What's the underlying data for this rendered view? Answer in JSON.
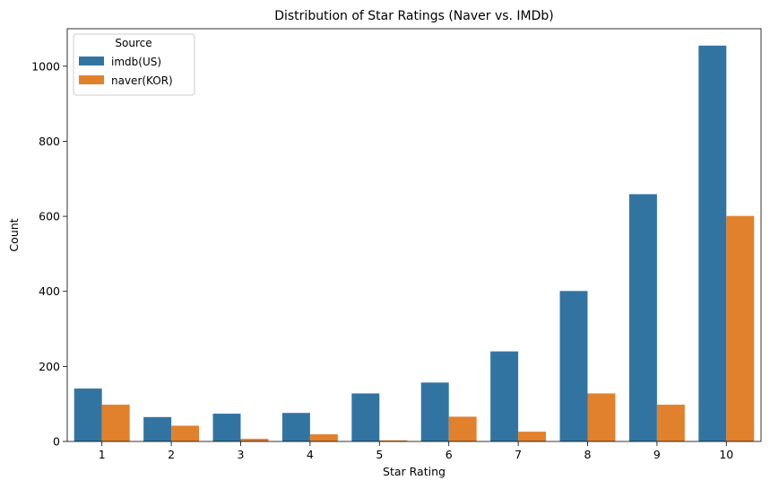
{
  "chart_data": {
    "type": "bar",
    "title": "Distribution of Star Ratings (Naver vs. IMDb)",
    "xlabel": "Star Rating",
    "ylabel": "Count",
    "categories": [
      "1",
      "2",
      "3",
      "4",
      "5",
      "6",
      "7",
      "8",
      "9",
      "10"
    ],
    "series": [
      {
        "name": "imdb(US)",
        "color": "#3274a1",
        "values": [
          141,
          65,
          74,
          76,
          128,
          157,
          240,
          401,
          659,
          1055
        ]
      },
      {
        "name": "naver(KOR)",
        "color": "#e1812c",
        "values": [
          98,
          42,
          7,
          19,
          3,
          66,
          26,
          128,
          98,
          601
        ]
      }
    ],
    "ylim": [
      0,
      1100
    ],
    "yticks": [
      0,
      200,
      400,
      600,
      800,
      1000
    ],
    "grid": false,
    "legend": {
      "title": "Source",
      "placement": "top-left"
    }
  }
}
